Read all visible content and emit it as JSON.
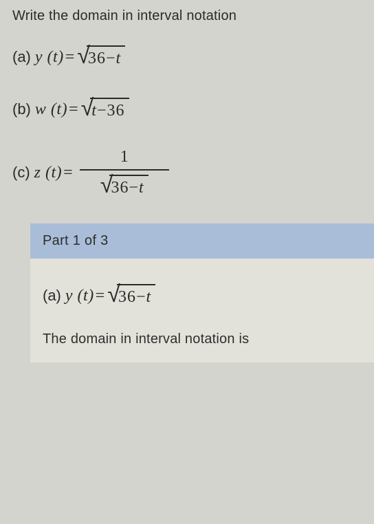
{
  "instruction": "Write the domain in interval notation",
  "equations": {
    "a": {
      "label": "(a)",
      "lhs_func": "y",
      "lhs_var": "t",
      "type": "sqrt",
      "radicand_left": "36",
      "op": "−",
      "radicand_right": "t"
    },
    "b": {
      "label": "(b)",
      "lhs_func": "w",
      "lhs_var": "t",
      "type": "sqrt",
      "radicand_left": "t",
      "op": "−",
      "radicand_right": "36"
    },
    "c": {
      "label": "(c)",
      "lhs_func": "z",
      "lhs_var": "t",
      "type": "frac",
      "numerator": "1",
      "radicand_left": "36",
      "op": "−",
      "radicand_right": "t"
    }
  },
  "part": {
    "header": "Part 1 of 3",
    "eq": {
      "label": "(a)",
      "lhs_func": "y",
      "lhs_var": "t",
      "radicand_left": "36",
      "op": "−",
      "radicand_right": "t"
    },
    "result_text": "The domain in interval notation is"
  },
  "colors": {
    "page_bg": "#d4d4ce",
    "header_bg": "#a9bdd8",
    "body_bg": "#e2e2db",
    "text": "#2a2a28"
  }
}
